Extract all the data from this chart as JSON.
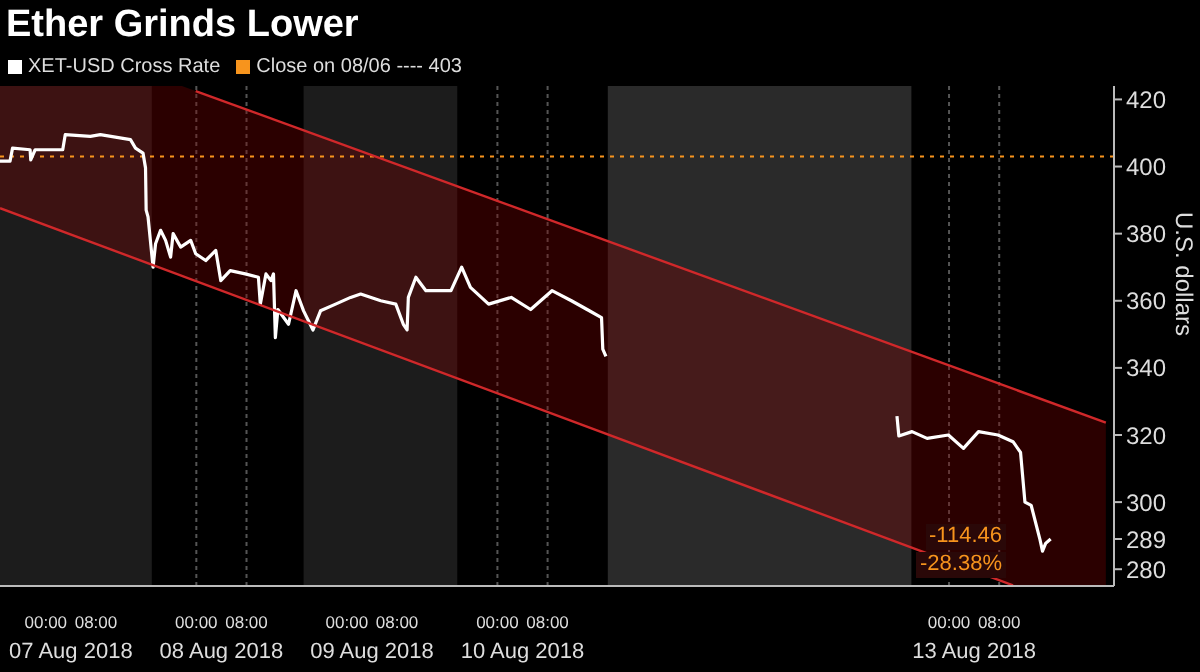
{
  "chart_data": {
    "type": "line",
    "title": "Ether Grinds Lower",
    "ylabel": "U.S. dollars",
    "xlim": [
      "2018-08-06T16:42",
      "2018-08-14T02:18"
    ],
    "ylim": [
      275,
      424
    ],
    "xticks": [
      {
        "value": "2018-08-07T00:00",
        "label": "00:00"
      },
      {
        "value": "2018-08-07T08:00",
        "label": "08:00"
      },
      {
        "value": "2018-08-08T00:00",
        "label": "00:00"
      },
      {
        "value": "2018-08-08T08:00",
        "label": "08:00"
      },
      {
        "value": "2018-08-09T00:00",
        "label": "00:00"
      },
      {
        "value": "2018-08-09T08:00",
        "label": "08:00"
      },
      {
        "value": "2018-08-10T00:00",
        "label": "00:00"
      },
      {
        "value": "2018-08-10T08:00",
        "label": "08:00"
      },
      {
        "value": "2018-08-13T00:00",
        "label": "00:00"
      },
      {
        "value": "2018-08-13T08:00",
        "label": "08:00"
      }
    ],
    "x2lim": [
      "2018-08-06T16:42",
      "2018-08-14T02:18"
    ],
    "x2ticks": [
      {
        "value": "2018-08-07T04:00",
        "label": "07 Aug 2018"
      },
      {
        "value": "2018-08-08T04:00",
        "label": "08 Aug 2018"
      },
      {
        "value": "2018-08-09T04:00",
        "label": "09 Aug 2018"
      },
      {
        "value": "2018-08-10T04:00",
        "label": "10 Aug 2018"
      },
      {
        "value": "2018-08-13T04:00",
        "label": "13 Aug 2018"
      }
    ],
    "yticks": [
      280,
      289,
      300,
      320,
      340,
      360,
      380,
      400,
      420
    ],
    "grid": true,
    "legend": "top left",
    "marker": "none",
    "line_style": "solid",
    "series": [
      {
        "name": "XET-USD Cross Rate",
        "color": "#ffffff",
        "x": [
          "2018-08-06T16:42",
          "2018-08-06T18:18",
          "2018-08-06T18:42",
          "2018-08-06T21:30",
          "2018-08-06T21:36",
          "2018-08-06T22:18",
          "2018-08-07T02:42",
          "2018-08-07T03:06",
          "2018-08-07T07:06",
          "2018-08-07T08:42",
          "2018-08-07T13:30",
          "2018-08-07T14:18",
          "2018-08-07T15:30",
          "2018-08-07T15:54",
          "2018-08-07T16:00",
          "2018-08-07T16:18",
          "2018-08-07T17:06",
          "2018-08-07T17:30",
          "2018-08-07T18:18",
          "2018-08-07T19:06",
          "2018-08-07T19:54",
          "2018-08-07T20:18",
          "2018-08-07T21:30",
          "2018-08-07T23:06",
          "2018-08-07T23:54",
          "2018-08-08T01:30",
          "2018-08-08T03:06",
          "2018-08-08T03:54",
          "2018-08-08T05:24",
          "2018-08-08T07:48",
          "2018-08-08T09:54",
          "2018-08-08T10:12",
          "2018-08-08T11:06",
          "2018-08-08T11:54",
          "2018-08-08T12:18",
          "2018-08-08T12:36",
          "2018-08-08T13:00",
          "2018-08-08T14:42",
          "2018-08-08T15:54",
          "2018-08-08T17:06",
          "2018-08-08T18:36",
          "2018-08-08T19:48",
          "2018-08-08T22:12",
          "2018-08-09T00:36",
          "2018-08-09T02:12",
          "2018-08-09T05:24",
          "2018-08-09T07:48",
          "2018-08-09T09:00",
          "2018-08-09T09:36",
          "2018-08-09T09:48",
          "2018-08-09T11:00",
          "2018-08-09T12:36",
          "2018-08-09T16:36",
          "2018-08-09T18:18",
          "2018-08-09T19:42",
          "2018-08-09T22:36",
          "2018-08-10T02:12",
          "2018-08-10T05:18",
          "2018-08-10T08:42",
          "2018-08-10T11:48",
          "2018-08-10T14:18",
          "2018-08-10T16:36",
          "2018-08-10T16:48",
          "2018-08-10T17:18",
          "2018-08-11T12:00",
          "2018-08-12T15:42",
          "2018-08-12T16:00",
          "2018-08-12T18:06",
          "2018-08-12T20:30",
          "2018-08-12T23:54",
          "2018-08-13T02:18",
          "2018-08-13T04:42",
          "2018-08-13T07:48",
          "2018-08-13T10:12",
          "2018-08-13T11:24",
          "2018-08-13T12:06",
          "2018-08-13T13:06",
          "2018-08-13T14:30",
          "2018-08-13T14:54",
          "2018-08-13T15:24",
          "2018-08-13T16:12"
        ],
        "values": [
          401.6,
          401.6,
          405.5,
          405,
          402,
          405,
          405,
          409.5,
          409,
          409.5,
          408,
          405.5,
          404,
          399.6,
          387,
          385,
          370,
          377,
          381,
          378,
          373,
          380,
          376,
          378,
          374,
          372,
          375,
          366,
          369,
          368,
          367,
          359,
          368,
          366,
          368,
          349,
          357.4,
          353,
          363,
          357,
          351.3,
          357,
          359,
          361,
          362,
          360,
          359,
          353,
          351.3,
          361,
          367,
          363,
          363,
          370,
          364,
          359,
          361,
          357.4,
          363,
          360,
          357.4,
          355,
          345.6,
          343.4,
          null,
          325.6,
          319.7,
          321,
          319,
          320,
          316,
          321,
          320,
          318,
          314.8,
          300,
          299,
          288.8,
          285.4,
          287.7,
          289
        ]
      },
      {
        "color": "#d0282a",
        "x": [
          "2018-08-06T16:42",
          "2018-08-13T10:12"
        ],
        "values": [
          387.6,
          275.2
        ]
      },
      {
        "color": "#d0282a",
        "x": [
          "2018-08-07T23:54",
          "2018-08-14T01:00"
        ],
        "values": [
          422.5,
          323.7
        ]
      }
    ],
    "ref_lines": [
      {
        "axis": "y",
        "value": 403,
        "label": "Close on 08/06 ---- 403",
        "color": "#f7941d",
        "line_style": "dotted"
      }
    ],
    "bands": [
      {
        "axis": "x",
        "from": "2018-08-06T16:42",
        "to": "2018-08-07T16:54",
        "color": "#1c1c1c"
      },
      {
        "axis": "x",
        "from": "2018-08-08T17:06",
        "to": "2018-08-09T17:36",
        "color": "#1c1c1c"
      },
      {
        "axis": "x",
        "from": "2018-08-10T17:36",
        "to": "2018-08-12T18:00",
        "color": "#2a2a2a"
      }
    ],
    "annotations": [
      "-114.46",
      "-28.38%"
    ]
  }
}
